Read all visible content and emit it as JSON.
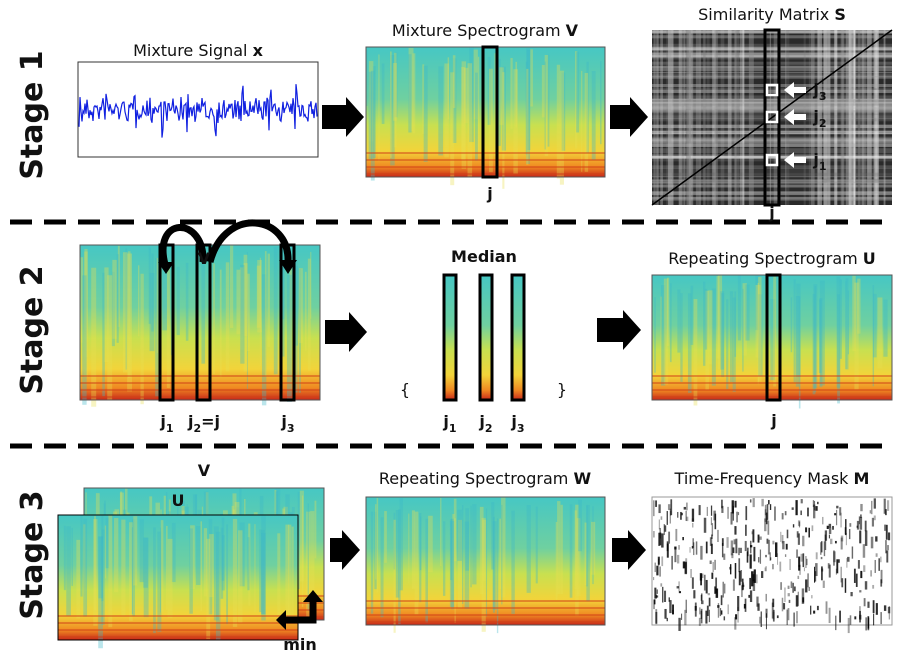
{
  "stages": [
    "Stage 1",
    "Stage 2",
    "Stage 3"
  ],
  "stage1": {
    "signal_title": {
      "text": "Mixture Signal",
      "var": "x"
    },
    "spectrogram_title": {
      "text": "Mixture Spectrogram",
      "var": "V"
    },
    "spectrogram_index": "j",
    "similarity_title": {
      "text": "Similarity Matrix",
      "var": "S"
    },
    "similarity_index": "j",
    "similarity_markers": [
      {
        "base": "j",
        "sub": "3"
      },
      {
        "base": "j",
        "sub": "2"
      },
      {
        "base": "j",
        "sub": "1"
      }
    ]
  },
  "stage2": {
    "spectrogram_label": "V",
    "frame_labels": [
      {
        "base": "j",
        "sub": "1"
      },
      {
        "base": "j",
        "sub": "2",
        "suffix": "=j"
      },
      {
        "base": "j",
        "sub": "3"
      }
    ],
    "median_title": "Median",
    "median_labels": [
      {
        "base": "j",
        "sub": "1"
      },
      {
        "base": "j",
        "sub": "2"
      },
      {
        "base": "j",
        "sub": "3"
      }
    ],
    "repeating_title": {
      "text": "Repeating Spectrogram",
      "var": "U"
    },
    "repeating_index": "j"
  },
  "stage3": {
    "back_label": "V",
    "front_label": "U",
    "min_label": "min",
    "repeating_title": {
      "text": "Repeating Spectrogram",
      "var": "W"
    },
    "mask_title": {
      "text": "Time-Frequency Mask",
      "var": "M"
    }
  }
}
